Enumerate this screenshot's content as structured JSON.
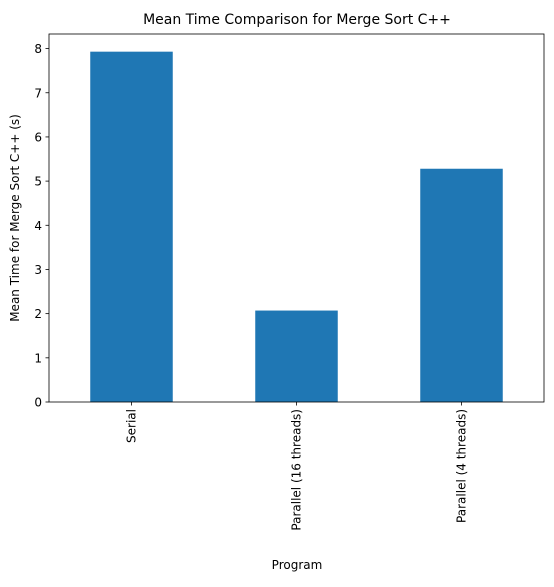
{
  "chart_data": {
    "type": "bar",
    "title": "Mean Time Comparison for Merge Sort C++",
    "xlabel": "Program",
    "ylabel": "Mean Time for Merge Sort C++ (s)",
    "categories": [
      "Serial",
      "Parallel (16 threads)",
      "Parallel (4 threads)"
    ],
    "values": [
      7.93,
      2.07,
      5.28
    ],
    "ylim": [
      0,
      8.33
    ],
    "yticks": [
      0,
      1,
      2,
      3,
      4,
      5,
      6,
      7,
      8
    ],
    "grid": false,
    "bar_color": "#1f77b4"
  }
}
